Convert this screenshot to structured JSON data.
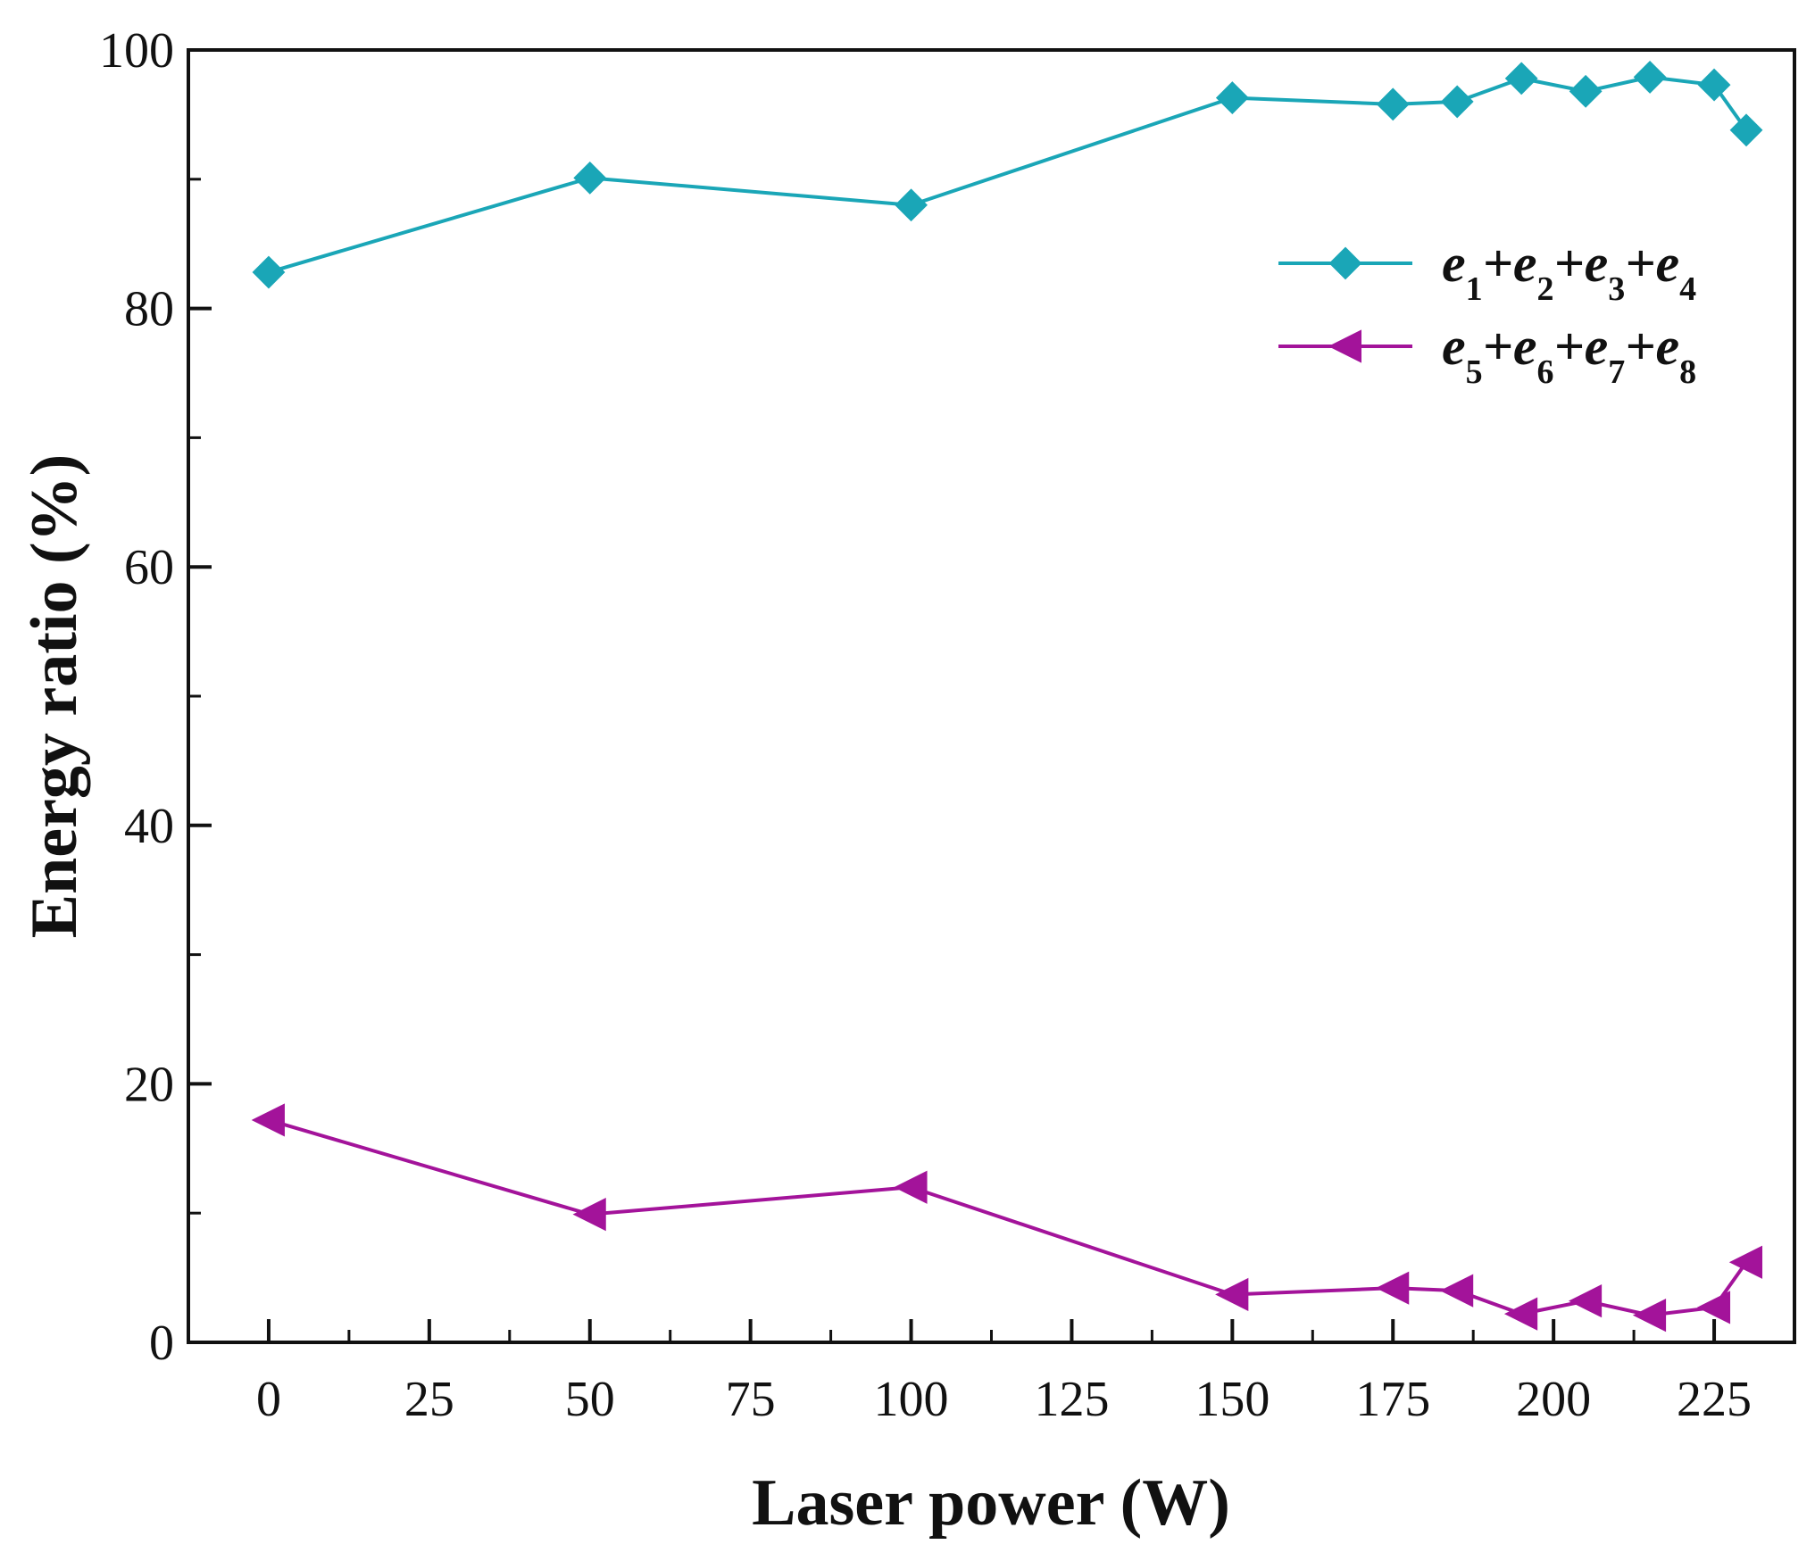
{
  "chart_data": {
    "type": "line",
    "title": "",
    "xlabel": "Laser power (W)",
    "ylabel": "Energy ratio (%)",
    "xlim": [
      -12.5,
      237.5
    ],
    "ylim": [
      0,
      100
    ],
    "xticks": [
      0,
      25,
      50,
      75,
      100,
      125,
      150,
      175,
      200,
      225
    ],
    "yticks": [
      0,
      20,
      40,
      60,
      80,
      100
    ],
    "grid": false,
    "legend_position": "top-right",
    "series": [
      {
        "name": "e1+e2+e3+e4",
        "legend_parts": [
          {
            "t": "e",
            "sub": "1"
          },
          {
            "t": "+e",
            "sub": "2"
          },
          {
            "t": "+e",
            "sub": "3"
          },
          {
            "t": "+e",
            "sub": "4"
          }
        ],
        "marker": "diamond",
        "color": "#1aa6b7",
        "x": [
          0,
          50,
          100,
          150,
          175,
          185,
          195,
          205,
          215,
          225,
          230
        ],
        "y": [
          82.8,
          90.1,
          88.0,
          96.3,
          95.8,
          96.0,
          97.8,
          96.8,
          97.9,
          97.3,
          93.8
        ]
      },
      {
        "name": "e5+e6+e7+e8",
        "legend_parts": [
          {
            "t": "e",
            "sub": "5"
          },
          {
            "t": "+e",
            "sub": "6"
          },
          {
            "t": "+e",
            "sub": "7"
          },
          {
            "t": "+e",
            "sub": "8"
          }
        ],
        "marker": "triangle-left",
        "color": "#a3139a",
        "x": [
          0,
          50,
          100,
          150,
          175,
          185,
          195,
          205,
          215,
          225,
          230
        ],
        "y": [
          17.2,
          9.9,
          12.0,
          3.7,
          4.2,
          4.0,
          2.2,
          3.2,
          2.1,
          2.7,
          6.2
        ]
      }
    ]
  }
}
